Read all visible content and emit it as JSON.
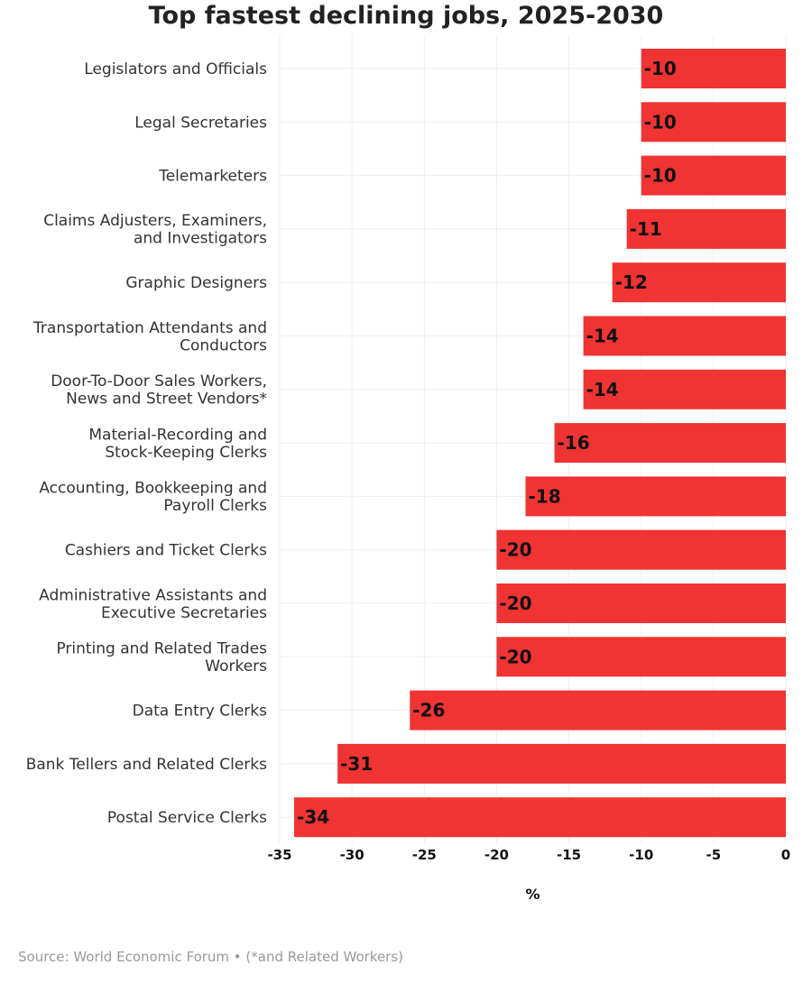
{
  "chart_data": {
    "type": "bar",
    "orientation": "horizontal",
    "title": "Top fastest declining jobs, 2025-2030",
    "xlabel": "%",
    "ylabel": "",
    "xlim": [
      -35,
      0
    ],
    "xticks": [
      -35,
      -30,
      -25,
      -20,
      -15,
      -10,
      -5,
      0
    ],
    "grid": true,
    "bar_color": "#f03333",
    "categories": [
      "Legislators and Officials",
      "Legal Secretaries",
      "Telemarketers",
      "Claims Adjusters, Examiners,\nand Investigators",
      "Graphic Designers",
      "Transportation Attendants and\nConductors",
      "Door-To-Door Sales Workers,\nNews and Street Vendors*",
      "Material-Recording and\nStock-Keeping Clerks",
      "Accounting, Bookkeeping and\nPayroll Clerks",
      "Cashiers and Ticket Clerks",
      "Administrative Assistants and\nExecutive Secretaries",
      "Printing and Related Trades\nWorkers",
      "Data Entry Clerks",
      "Bank Tellers and Related Clerks",
      "Postal Service Clerks"
    ],
    "values": [
      -10,
      -10,
      -10,
      -11,
      -12,
      -14,
      -14,
      -16,
      -18,
      -20,
      -20,
      -20,
      -26,
      -31,
      -34
    ]
  },
  "source": "Source: World Economic Forum • (*and Related Workers)"
}
